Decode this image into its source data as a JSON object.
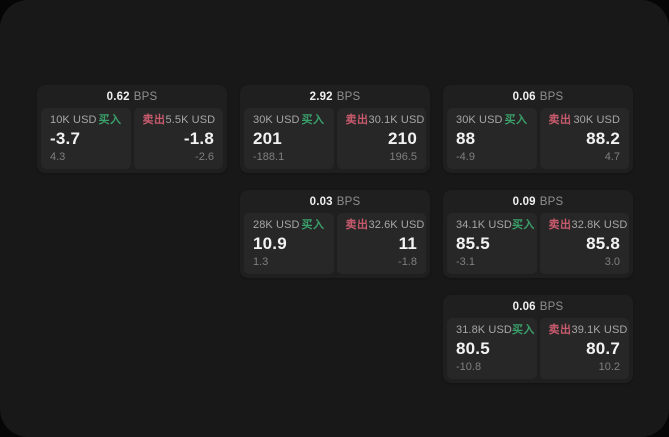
{
  "labels": {
    "bps_unit": "BPS",
    "buy": "买入",
    "sell": "卖出"
  },
  "colors": {
    "page_bg": "#060606",
    "panel_bg": "#181818",
    "card_bg": "#1f1f1f",
    "cell_bg": "#272727",
    "buy_green": "#3aa06a",
    "sell_red": "#c75a6c",
    "primary_text": "#f2f2f2",
    "secondary_text": "#a6a6a6",
    "muted_text": "#7f7f7f"
  },
  "cards": [
    {
      "col": 0,
      "row": 0,
      "bps": "0.62",
      "buy": {
        "amount": "10K USD",
        "value": "-3.7",
        "change": "4.3"
      },
      "sell": {
        "amount": "5.5K USD",
        "value": "-1.8",
        "change": "-2.6"
      }
    },
    {
      "col": 1,
      "row": 0,
      "bps": "2.92",
      "buy": {
        "amount": "30K USD",
        "value": "201",
        "change": "-188.1"
      },
      "sell": {
        "amount": "30.1K USD",
        "value": "210",
        "change": "196.5"
      }
    },
    {
      "col": 2,
      "row": 0,
      "bps": "0.06",
      "buy": {
        "amount": "30K USD",
        "value": "88",
        "change": "-4.9"
      },
      "sell": {
        "amount": "30K USD",
        "value": "88.2",
        "change": "4.7"
      }
    },
    {
      "col": 1,
      "row": 1,
      "bps": "0.03",
      "buy": {
        "amount": "28K USD",
        "value": "10.9",
        "change": "1.3"
      },
      "sell": {
        "amount": "32.6K USD",
        "value": "11",
        "change": "-1.8"
      }
    },
    {
      "col": 2,
      "row": 1,
      "bps": "0.09",
      "buy": {
        "amount": "34.1K USD",
        "value": "85.5",
        "change": "-3.1"
      },
      "sell": {
        "amount": "32.8K USD",
        "value": "85.8",
        "change": "3.0"
      }
    },
    {
      "col": 2,
      "row": 2,
      "bps": "0.06",
      "buy": {
        "amount": "31.8K USD",
        "value": "80.5",
        "change": "-10.8"
      },
      "sell": {
        "amount": "39.1K USD",
        "value": "80.7",
        "change": "10.2"
      }
    }
  ]
}
